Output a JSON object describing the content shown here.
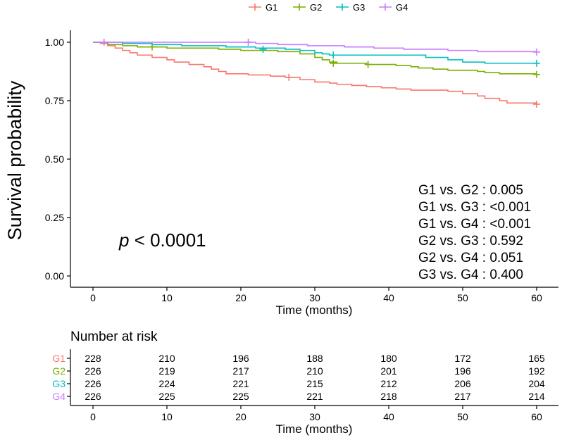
{
  "chart_data": {
    "type": "line",
    "ylabel": "Survival probability",
    "xlabel": "Time (months)",
    "xlim": [
      0,
      60
    ],
    "ylim": [
      0,
      1
    ],
    "x_ticks": [
      0,
      10,
      20,
      30,
      40,
      50,
      60
    ],
    "y_ticks": [
      0.0,
      0.25,
      0.5,
      0.75,
      1.0
    ],
    "y_tick_labels": [
      "0.00",
      "0.25",
      "0.50",
      "0.75",
      "1.00"
    ],
    "grid": false,
    "legend_position": "top",
    "series": [
      {
        "name": "G1",
        "color": "#F8766D",
        "points": [
          [
            0,
            1.0
          ],
          [
            1,
            0.995
          ],
          [
            2,
            0.985
          ],
          [
            3,
            0.975
          ],
          [
            4,
            0.965
          ],
          [
            5,
            0.955
          ],
          [
            6,
            0.945
          ],
          [
            8,
            0.935
          ],
          [
            10,
            0.925
          ],
          [
            11,
            0.915
          ],
          [
            13,
            0.905
          ],
          [
            15,
            0.895
          ],
          [
            16,
            0.885
          ],
          [
            17,
            0.875
          ],
          [
            18,
            0.865
          ],
          [
            21,
            0.86
          ],
          [
            24,
            0.855
          ],
          [
            26,
            0.85
          ],
          [
            28,
            0.84
          ],
          [
            30,
            0.83
          ],
          [
            32,
            0.825
          ],
          [
            33,
            0.82
          ],
          [
            35,
            0.815
          ],
          [
            37,
            0.81
          ],
          [
            39,
            0.805
          ],
          [
            41,
            0.8
          ],
          [
            43,
            0.795
          ],
          [
            48,
            0.79
          ],
          [
            50,
            0.78
          ],
          [
            52,
            0.77
          ],
          [
            53,
            0.76
          ],
          [
            55,
            0.75
          ],
          [
            56,
            0.74
          ],
          [
            58,
            0.74
          ],
          [
            60,
            0.735
          ]
        ],
        "censor": [
          [
            26.5,
            0.85
          ],
          [
            60,
            0.735
          ]
        ]
      },
      {
        "name": "G2",
        "color": "#7CAE00",
        "points": [
          [
            0,
            1.0
          ],
          [
            2,
            0.99
          ],
          [
            4,
            0.985
          ],
          [
            6,
            0.98
          ],
          [
            10,
            0.975
          ],
          [
            17,
            0.97
          ],
          [
            20,
            0.965
          ],
          [
            25,
            0.96
          ],
          [
            28,
            0.95
          ],
          [
            30,
            0.935
          ],
          [
            31,
            0.925
          ],
          [
            32,
            0.915
          ],
          [
            33,
            0.91
          ],
          [
            37,
            0.905
          ],
          [
            41,
            0.9
          ],
          [
            43,
            0.895
          ],
          [
            44,
            0.89
          ],
          [
            46,
            0.885
          ],
          [
            48,
            0.88
          ],
          [
            52,
            0.875
          ],
          [
            53,
            0.87
          ],
          [
            55,
            0.865
          ],
          [
            60,
            0.862
          ]
        ],
        "censor": [
          [
            8,
            0.98
          ],
          [
            32.5,
            0.91
          ],
          [
            37.2,
            0.905
          ],
          [
            60,
            0.862
          ]
        ]
      },
      {
        "name": "G3",
        "color": "#00BFC4",
        "points": [
          [
            0,
            1.0
          ],
          [
            4,
            0.995
          ],
          [
            8,
            0.99
          ],
          [
            12,
            0.985
          ],
          [
            18,
            0.98
          ],
          [
            22,
            0.975
          ],
          [
            26,
            0.97
          ],
          [
            28,
            0.965
          ],
          [
            30,
            0.955
          ],
          [
            31,
            0.95
          ],
          [
            32,
            0.945
          ],
          [
            45,
            0.935
          ],
          [
            48,
            0.925
          ],
          [
            50,
            0.915
          ],
          [
            53,
            0.91
          ],
          [
            60,
            0.91
          ]
        ],
        "censor": [
          [
            23,
            0.97
          ],
          [
            32.5,
            0.945
          ],
          [
            60,
            0.91
          ]
        ]
      },
      {
        "name": "G4",
        "color": "#C77CFF",
        "points": [
          [
            0,
            1.0
          ],
          [
            21,
            1.0
          ],
          [
            22,
            0.995
          ],
          [
            25,
            0.99
          ],
          [
            29,
            0.985
          ],
          [
            34,
            0.98
          ],
          [
            38,
            0.975
          ],
          [
            42,
            0.97
          ],
          [
            48,
            0.965
          ],
          [
            52,
            0.96
          ],
          [
            60,
            0.958
          ]
        ],
        "censor": [
          [
            1.5,
            1.0
          ],
          [
            21,
            1.0
          ],
          [
            60,
            0.958
          ]
        ]
      }
    ],
    "annotations": {
      "p_symbol": "p",
      "p_value": " < 0.0001",
      "pairwise": [
        "G1 vs. G2 : 0.005",
        "G1 vs. G3 : <0.001",
        "G1 vs. G4 : <0.001",
        "G2 vs. G3 : 0.592",
        "G2 vs. G4 : 0.051",
        "G3 vs. G4 : 0.400"
      ]
    },
    "risk_table": {
      "title": "Number at risk",
      "xlabel": "Time (months)",
      "times": [
        0,
        10,
        20,
        30,
        40,
        50,
        60
      ],
      "rows": [
        {
          "group": "G1",
          "color": "#F8766D",
          "values": [
            228,
            210,
            196,
            188,
            180,
            172,
            165
          ]
        },
        {
          "group": "G2",
          "color": "#7CAE00",
          "values": [
            226,
            219,
            217,
            210,
            201,
            196,
            192
          ]
        },
        {
          "group": "G3",
          "color": "#00BFC4",
          "values": [
            226,
            224,
            221,
            215,
            212,
            206,
            204
          ]
        },
        {
          "group": "G4",
          "color": "#C77CFF",
          "values": [
            226,
            225,
            225,
            221,
            218,
            217,
            214
          ]
        }
      ]
    }
  }
}
